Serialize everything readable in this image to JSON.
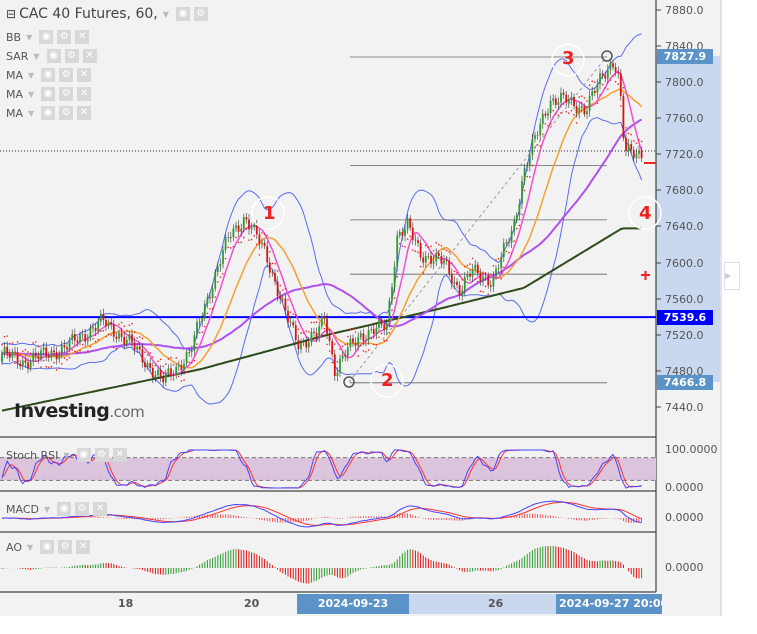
{
  "header": {
    "title": "CAC 40 Futures, 60,",
    "indicators": [
      "BB",
      "SAR",
      "MA",
      "MA",
      "MA"
    ]
  },
  "lower_panels": {
    "stoch": "Stoch RSI",
    "macd": "MACD",
    "ao": "AO"
  },
  "logo": {
    "main": "Investing",
    ".com": ".com"
  },
  "chart_data": {
    "type": "candlestick",
    "price_axis": {
      "ticks": [
        "7880.0",
        "7840.0",
        "7800.0",
        "7760.0",
        "7720.0",
        "7680.0",
        "7640.0",
        "7600.0",
        "7560.0",
        "7520.0",
        "7480.0",
        "7440.0"
      ],
      "range": [
        7420,
        7890
      ]
    },
    "time_axis": {
      "ticks": [
        "18",
        "20",
        "26"
      ],
      "highlight_start": "2024-09-23 16:00:00",
      "highlight_end": "2024-09-27 20:00:00"
    },
    "trading_days": [
      "09-16",
      "09-17",
      "09-18",
      "09-19",
      "09-20",
      "09-23",
      "09-24",
      "09-25",
      "09-26",
      "09-27"
    ],
    "close_path": [
      [
        "09-16 00:00",
        7500
      ],
      [
        "09-16 08:00",
        7490
      ],
      [
        "09-17 00:00",
        7505
      ],
      [
        "09-17 15:00",
        7535
      ],
      [
        "09-18 02:00",
        7510
      ],
      [
        "09-18 14:00",
        7468
      ],
      [
        "09-19 01:00",
        7500
      ],
      [
        "09-19 05:00",
        7540
      ],
      [
        "09-19 11:00",
        7590
      ],
      [
        "09-19 16:00",
        7630
      ],
      [
        "09-19 22:00",
        7650
      ],
      [
        "09-20 06:00",
        7612
      ],
      [
        "09-20 14:00",
        7540
      ],
      [
        "09-20 19:00",
        7510
      ],
      [
        "09-23 02:00",
        7520
      ],
      [
        "09-23 05:00",
        7540
      ],
      [
        "09-23 09:00",
        7480
      ],
      [
        "09-23 13:00",
        7500
      ],
      [
        "09-23 19:00",
        7520
      ],
      [
        "09-24 05:00",
        7530
      ],
      [
        "09-24 09:00",
        7630
      ],
      [
        "09-24 13:00",
        7640
      ],
      [
        "09-24 18:00",
        7610
      ],
      [
        "09-25 03:00",
        7600
      ],
      [
        "09-25 09:00",
        7570
      ],
      [
        "09-25 14:00",
        7590
      ],
      [
        "09-25 22:00",
        7580
      ],
      [
        "09-26 06:00",
        7640
      ],
      [
        "09-26 10:00",
        7700
      ],
      [
        "09-26 16:00",
        7750
      ],
      [
        "09-26 20:00",
        7780
      ],
      [
        "09-27 02:00",
        7780
      ],
      [
        "09-27 10:00",
        7770
      ],
      [
        "09-27 17:00",
        7810
      ],
      [
        "09-27 21:00",
        7825
      ],
      [
        "09-27 23:00",
        7800
      ],
      [
        "09-28 01:00",
        7722
      ]
    ],
    "ma200_path": [
      [
        "09-16 00:00",
        7436
      ],
      [
        "09-19 05:00",
        7482
      ],
      [
        "09-23 06:00",
        7520
      ],
      [
        "09-25 00:00",
        7548
      ],
      [
        "09-26 10:00",
        7572
      ],
      [
        "09-28 00:00",
        7638
      ]
    ],
    "levels": {
      "current": "7827.9",
      "support": "7539.6",
      "low": "7466.8",
      "fib": [
        7827.9,
        7707.5,
        7647.4,
        7587.2,
        7466.8
      ]
    },
    "annotations": [
      "1",
      "2",
      "3",
      "4"
    ],
    "stoch_axis": [
      "100.0000",
      "0.0000"
    ],
    "macd_axis": [
      "0.0000"
    ],
    "ao_axis": [
      "0.0000"
    ],
    "colors": {
      "up": "#2e9b2e",
      "down": "#d11",
      "bb": "#5b6cf0",
      "ma_fast": "#f050d0",
      "ma_mid": "#f5a030",
      "ma_slow": "#b050f0",
      "ma200": "#2d4a1a",
      "support": "#0000ff",
      "sar": "#e22"
    }
  }
}
